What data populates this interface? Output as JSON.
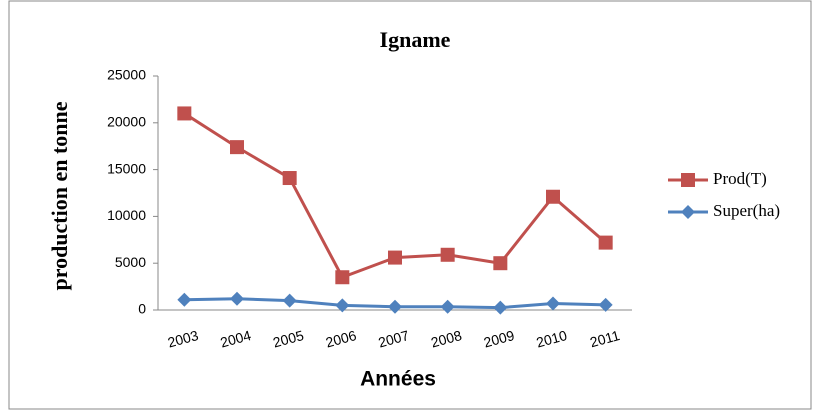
{
  "chart_data": {
    "type": "line",
    "title": "Igname",
    "x_label": "Années",
    "y_label": "production en tonne",
    "categories": [
      "2003",
      "2004",
      "2005",
      "2006",
      "2007",
      "2008",
      "2009",
      "2010",
      "2011"
    ],
    "series": [
      {
        "name": "Prod(T)",
        "color": "#c0504d",
        "marker": "square",
        "values": [
          21000,
          17400,
          14100,
          3500,
          5600,
          5900,
          5000,
          12100,
          7200
        ]
      },
      {
        "name": "Super(ha)",
        "color": "#4f81bd",
        "marker": "diamond",
        "values": [
          1100,
          1200,
          1000,
          500,
          350,
          350,
          250,
          700,
          550
        ]
      }
    ],
    "ylim": [
      0,
      25000
    ],
    "yticks": [
      0,
      5000,
      10000,
      15000,
      20000,
      25000
    ],
    "legend": "right"
  }
}
